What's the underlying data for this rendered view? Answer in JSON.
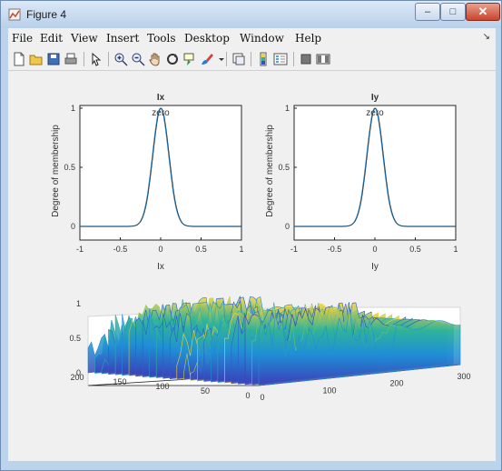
{
  "window": {
    "title": "Figure 4",
    "minimize": "–",
    "maximize": "□",
    "close": "✕"
  },
  "menu": [
    "File",
    "Edit",
    "View",
    "Insert",
    "Tools",
    "Desktop",
    "Window",
    "Help"
  ],
  "menu_arrow": "↘",
  "toolbar_icons": [
    "new-figure-icon",
    "open-file-icon",
    "save-icon",
    "print-icon",
    "pointer-icon",
    "zoom-in-icon",
    "zoom-out-icon",
    "pan-hand-icon",
    "rotate-3d-icon",
    "data-cursor-icon",
    "brush-icon",
    "brush-dropdown-icon",
    "link-plot-icon",
    "colorbar-icon",
    "legend-icon",
    "hide-plot-tools-icon",
    "show-plot-tools-icon"
  ],
  "colors": {
    "curve": "#1f77b4",
    "axis": "#333333",
    "surface_low": "#3b4cc0",
    "surface_mid": "#2fb39a",
    "surface_high": "#f3d23a"
  },
  "chart_data": [
    {
      "type": "line",
      "title": "Ix",
      "mf_label": "zero",
      "xlabel": "Ix",
      "ylabel": "Degree of membership",
      "xlim": [
        -1,
        1
      ],
      "ylim": [
        0,
        1
      ],
      "xticks": [
        "-1",
        "-0.5",
        "0",
        "0.5",
        "1"
      ],
      "yticks": [
        "0",
        "0.5",
        "1"
      ],
      "series": [
        {
          "function": "gaussian",
          "center": 0,
          "sigma": 0.1,
          "x": [
            -1,
            -0.5,
            -0.4,
            -0.3,
            -0.2,
            -0.1,
            0,
            0.1,
            0.2,
            0.3,
            0.4,
            0.5,
            1
          ],
          "y": [
            0,
            0,
            0,
            0.01,
            0.14,
            0.61,
            1,
            0.61,
            0.14,
            0.01,
            0,
            0,
            0
          ]
        }
      ]
    },
    {
      "type": "line",
      "title": "Iy",
      "mf_label": "zero",
      "xlabel": "Iy",
      "ylabel": "Degree of membership",
      "xlim": [
        -1,
        1
      ],
      "ylim": [
        0,
        1
      ],
      "xticks": [
        "-1",
        "-0.5",
        "0",
        "0.5",
        "1"
      ],
      "yticks": [
        "0",
        "0.5",
        "1"
      ],
      "series": [
        {
          "function": "gaussian",
          "center": 0,
          "sigma": 0.1,
          "x": [
            -1,
            -0.5,
            -0.4,
            -0.3,
            -0.2,
            -0.1,
            0,
            0.1,
            0.2,
            0.3,
            0.4,
            0.5,
            1
          ],
          "y": [
            0,
            0,
            0,
            0.01,
            0.14,
            0.61,
            1,
            0.61,
            0.14,
            0.01,
            0,
            0,
            0
          ]
        }
      ]
    },
    {
      "type": "surface",
      "xlim": [
        0,
        300
      ],
      "ylim": [
        0,
        200
      ],
      "zlim": [
        0,
        1
      ],
      "xticks": [
        "0",
        "100",
        "200",
        "300"
      ],
      "yticks": [
        "0",
        "50",
        "100",
        "150",
        "200"
      ],
      "zticks": [
        "0",
        "0.5",
        "1"
      ]
    }
  ]
}
